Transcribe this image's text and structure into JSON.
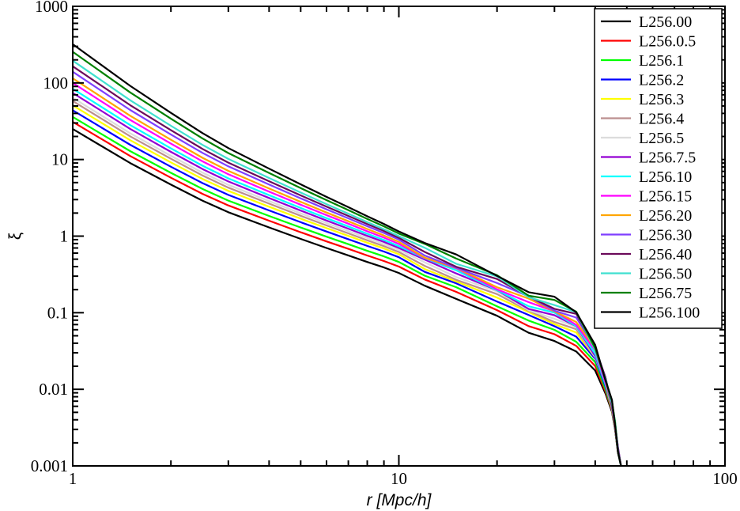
{
  "chart_data": {
    "type": "line",
    "xlabel": "r [Mpc/h]",
    "ylabel": "ξ",
    "xscale": "log",
    "yscale": "log",
    "xlim": [
      1,
      100
    ],
    "ylim": [
      0.001,
      1000
    ],
    "x_ticks": [
      "1",
      "10",
      "100"
    ],
    "y_ticks": [
      "0.001",
      "0.01",
      "0.1",
      "1",
      "10",
      "100",
      "1000"
    ],
    "grid": false,
    "legend_position": "top-right",
    "base_profile": {
      "r": [
        1,
        1.5,
        2,
        2.5,
        3,
        4,
        5,
        6,
        7,
        8,
        9,
        10,
        12,
        15,
        20,
        25,
        30,
        35,
        40,
        43,
        45,
        46,
        47,
        48
      ],
      "xi": [
        25,
        9,
        4.7,
        2.9,
        2.05,
        1.3,
        0.92,
        0.7,
        0.56,
        0.46,
        0.39,
        0.33,
        0.22,
        0.15,
        0.09,
        0.056,
        0.042,
        0.031,
        0.018,
        0.009,
        0.005,
        0.003,
        0.0015,
        0.001
      ]
    },
    "series": [
      {
        "name": "L256.00",
        "color": "#000000",
        "xi_at_r1": 25,
        "xi_at_r10": 0.33
      },
      {
        "name": "L256.0.5",
        "color": "#ff0000",
        "xi_at_r1": 31,
        "xi_at_r10": 0.4
      },
      {
        "name": "L256.1",
        "color": "#00ff00",
        "xi_at_r1": 36,
        "xi_at_r10": 0.46
      },
      {
        "name": "L256.2",
        "color": "#0000ff",
        "xi_at_r1": 44,
        "xi_at_r10": 0.53
      },
      {
        "name": "L256.3",
        "color": "#ffff00",
        "xi_at_r1": 51,
        "xi_at_r10": 0.58
      },
      {
        "name": "L256.4",
        "color": "#bc8f8f",
        "xi_at_r1": 58,
        "xi_at_r10": 0.62
      },
      {
        "name": "L256.5",
        "color": "#dcdcdc",
        "xi_at_r1": 64,
        "xi_at_r10": 0.66
      },
      {
        "name": "L256.7.5",
        "color": "#9400d3",
        "xi_at_r1": 74,
        "xi_at_r10": 0.7
      },
      {
        "name": "L256.10",
        "color": "#00ffff",
        "xi_at_r1": 84,
        "xi_at_r10": 0.74
      },
      {
        "name": "L256.15",
        "color": "#ff00ff",
        "xi_at_r1": 100,
        "xi_at_r10": 0.79
      },
      {
        "name": "L256.20",
        "color": "#ffa500",
        "xi_at_r1": 115,
        "xi_at_r10": 0.84
      },
      {
        "name": "L256.30",
        "color": "#7f3fff",
        "xi_at_r1": 140,
        "xi_at_r10": 0.9
      },
      {
        "name": "L256.40",
        "color": "#6b0a5a",
        "xi_at_r1": 165,
        "xi_at_r10": 0.95
      },
      {
        "name": "L256.50",
        "color": "#40e0d0",
        "xi_at_r1": 195,
        "xi_at_r10": 1.0
      },
      {
        "name": "L256.75",
        "color": "#008000",
        "xi_at_r1": 255,
        "xi_at_r10": 1.08
      },
      {
        "name": "L256.100",
        "color": "#000000",
        "xi_at_r1": 320,
        "xi_at_r10": 1.15
      }
    ]
  }
}
